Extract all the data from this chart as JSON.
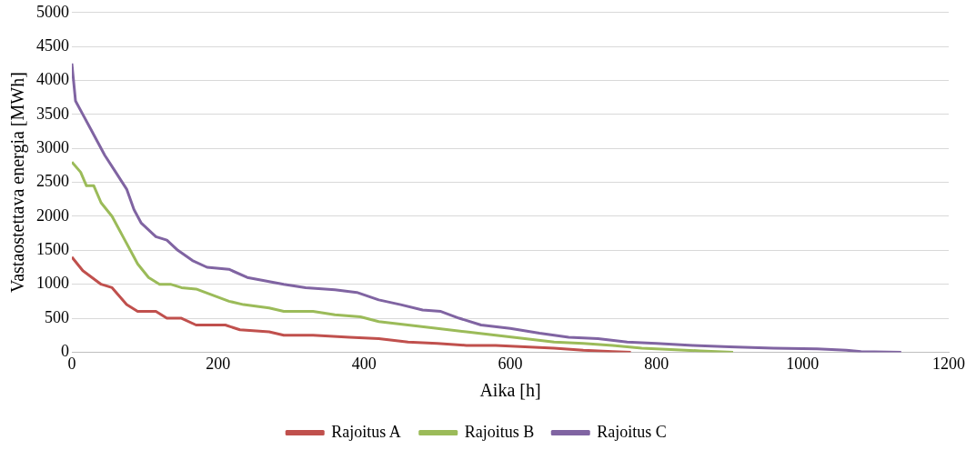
{
  "chart_data": {
    "type": "line",
    "xlabel": "Aika [h]",
    "ylabel": "Vastaostettava energia [MWh]",
    "xlim": [
      0,
      1200
    ],
    "xticks": [
      0,
      200,
      400,
      600,
      800,
      1000,
      1200
    ],
    "ylim": [
      0,
      5000
    ],
    "yticks": [
      0,
      500,
      1000,
      1500,
      2000,
      2500,
      3000,
      3500,
      4000,
      4500,
      5000
    ],
    "grid": "y",
    "legend": "bottom",
    "marker": "none",
    "series": [
      {
        "name": "Rajoitus A",
        "color": "#c0504d",
        "x": [
          0,
          15,
          40,
          55,
          75,
          90,
          115,
          130,
          150,
          170,
          210,
          230,
          270,
          290,
          330,
          380,
          420,
          460,
          500,
          540,
          580,
          620,
          660,
          700,
          740,
          765
        ],
        "values": [
          1400,
          1200,
          1000,
          950,
          700,
          600,
          600,
          500,
          500,
          400,
          400,
          330,
          300,
          250,
          250,
          220,
          200,
          150,
          130,
          100,
          100,
          80,
          60,
          30,
          10,
          0
        ]
      },
      {
        "name": "Rajoitus B",
        "color": "#9bbb59",
        "x": [
          0,
          12,
          20,
          30,
          40,
          55,
          70,
          85,
          90,
          105,
          120,
          135,
          150,
          170,
          190,
          215,
          235,
          270,
          290,
          330,
          360,
          395,
          420,
          460,
          500,
          540,
          580,
          620,
          660,
          700,
          740,
          780,
          820,
          860,
          905
        ],
        "values": [
          2800,
          2650,
          2450,
          2450,
          2200,
          2000,
          1700,
          1400,
          1300,
          1100,
          1000,
          1000,
          950,
          930,
          850,
          750,
          700,
          650,
          600,
          600,
          550,
          520,
          450,
          400,
          350,
          300,
          250,
          200,
          150,
          130,
          100,
          60,
          40,
          20,
          0
        ]
      },
      {
        "name": "Rajoitus C",
        "color": "#8064a2",
        "x": [
          0,
          5,
          15,
          25,
          35,
          45,
          60,
          75,
          85,
          95,
          105,
          115,
          130,
          145,
          165,
          185,
          215,
          240,
          265,
          290,
          320,
          360,
          390,
          420,
          450,
          480,
          505,
          530,
          560,
          600,
          640,
          680,
          720,
          760,
          800,
          850,
          900,
          960,
          1020,
          1060,
          1080,
          1135
        ],
        "values": [
          4250,
          3700,
          3500,
          3300,
          3100,
          2900,
          2650,
          2400,
          2100,
          1900,
          1800,
          1700,
          1650,
          1500,
          1350,
          1250,
          1220,
          1100,
          1050,
          1000,
          950,
          920,
          880,
          770,
          700,
          620,
          600,
          500,
          400,
          350,
          280,
          220,
          200,
          150,
          130,
          100,
          80,
          60,
          50,
          30,
          10,
          0
        ]
      }
    ]
  }
}
